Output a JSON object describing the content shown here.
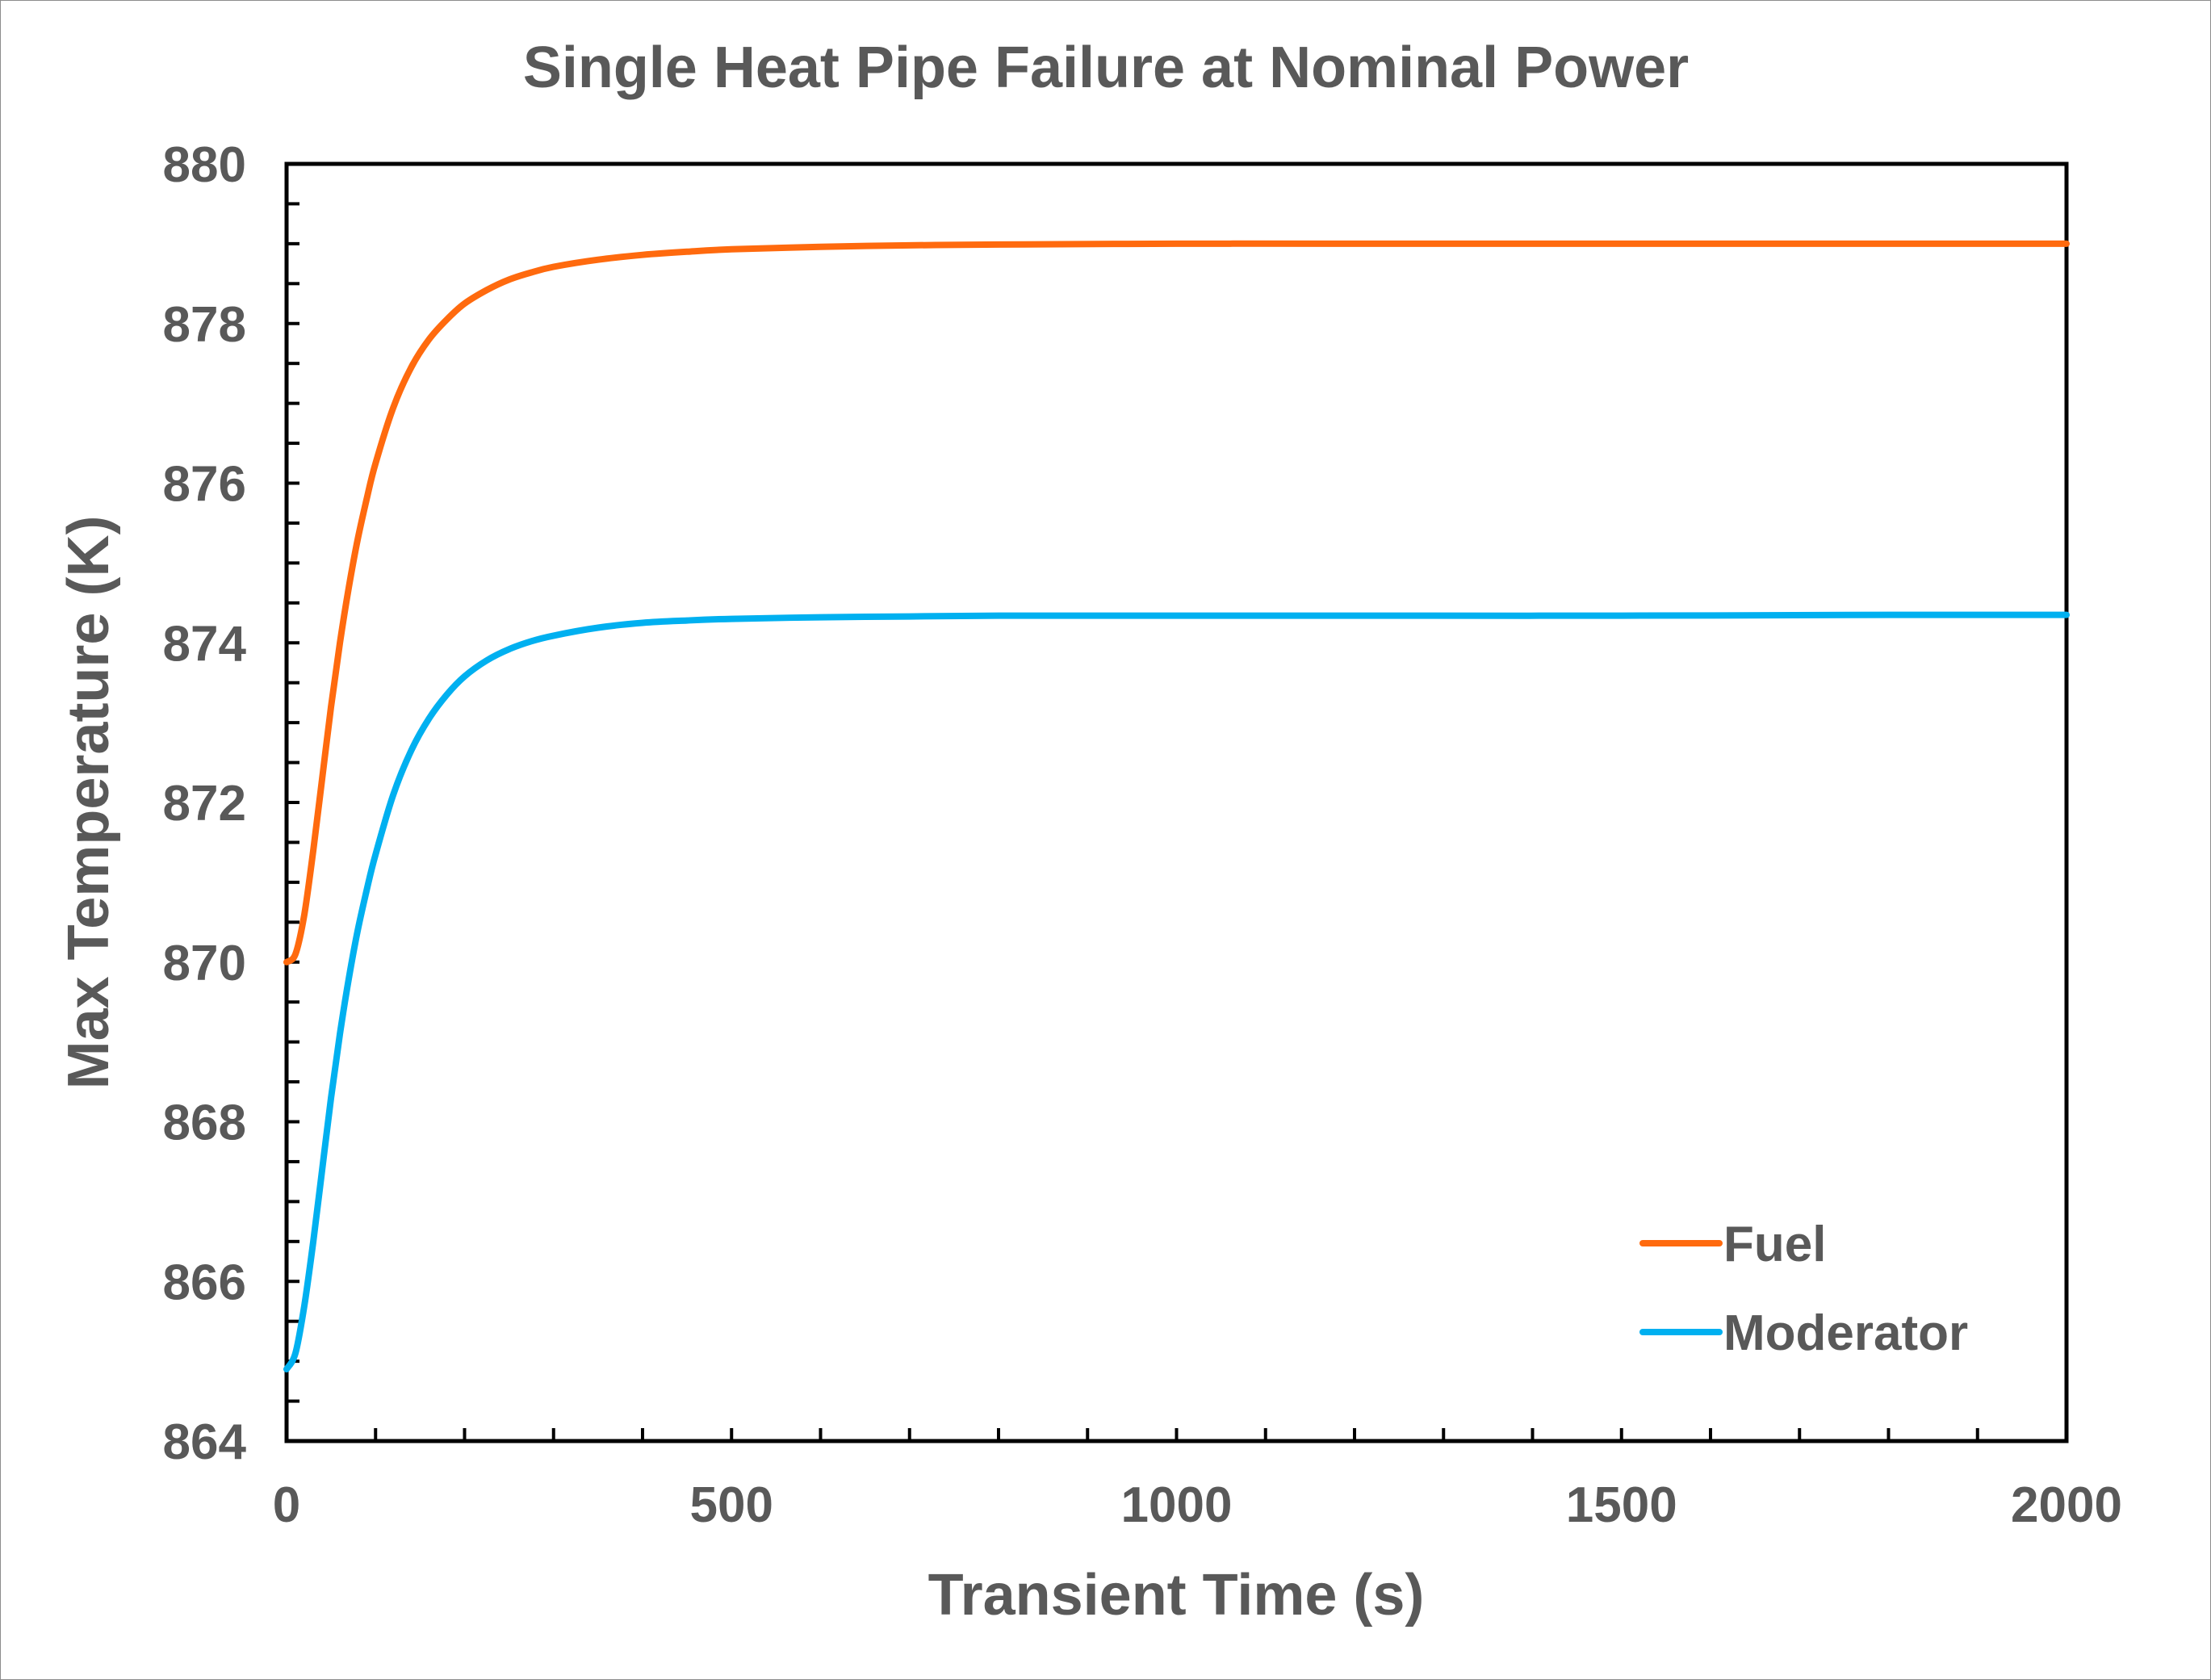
{
  "chart_data": {
    "type": "line",
    "title": "Single Heat Pipe Failure at Nominal Power",
    "xlabel": "Transient Time (s)",
    "ylabel": "Max Temperature (K)",
    "xlim": [
      0,
      2000
    ],
    "ylim": [
      864,
      880
    ],
    "x_major_ticks": [
      0,
      500,
      1000,
      1500,
      2000
    ],
    "x_tick_labels": [
      "0",
      "500",
      "1000",
      "1500",
      "2000"
    ],
    "x_minor_step": 100,
    "y_major_ticks": [
      864,
      866,
      868,
      870,
      872,
      874,
      876,
      878,
      880
    ],
    "y_tick_labels": [
      "864",
      "866",
      "868",
      "870",
      "872",
      "874",
      "876",
      "878",
      "880"
    ],
    "y_minor_step": 0.5,
    "grid": false,
    "legend_position": "bottom-right",
    "series": [
      {
        "name": "Fuel",
        "color": "#ff6a0e",
        "x": [
          0,
          10,
          20,
          30,
          40,
          50,
          60,
          70,
          80,
          90,
          100,
          120,
          140,
          160,
          180,
          200,
          225,
          250,
          275,
          300,
          350,
          400,
          450,
          500,
          600,
          700,
          800,
          1000,
          1200,
          1500,
          1800,
          2000
        ],
        "y": [
          870.0,
          870.1,
          870.6,
          871.4,
          872.3,
          873.2,
          874.0,
          874.7,
          875.3,
          875.8,
          876.25,
          876.95,
          877.45,
          877.8,
          878.05,
          878.25,
          878.42,
          878.55,
          878.64,
          878.71,
          878.8,
          878.86,
          878.9,
          878.93,
          878.96,
          878.98,
          878.99,
          879.0,
          879.0,
          879.0,
          879.0,
          879.0
        ]
      },
      {
        "name": "Moderator",
        "color": "#00b0f0",
        "x": [
          0,
          10,
          20,
          30,
          40,
          50,
          60,
          70,
          80,
          90,
          100,
          120,
          140,
          160,
          180,
          200,
          225,
          250,
          275,
          300,
          350,
          400,
          450,
          500,
          600,
          700,
          800,
          1000,
          1200,
          1500,
          1800,
          2000
        ],
        "y": [
          864.9,
          865.1,
          865.7,
          866.5,
          867.4,
          868.3,
          869.1,
          869.8,
          870.4,
          870.9,
          871.35,
          872.1,
          872.65,
          873.05,
          873.35,
          873.58,
          873.78,
          873.92,
          874.02,
          874.09,
          874.19,
          874.25,
          874.28,
          874.3,
          874.32,
          874.33,
          874.34,
          874.34,
          874.34,
          874.34,
          874.35,
          874.35
        ]
      }
    ]
  }
}
